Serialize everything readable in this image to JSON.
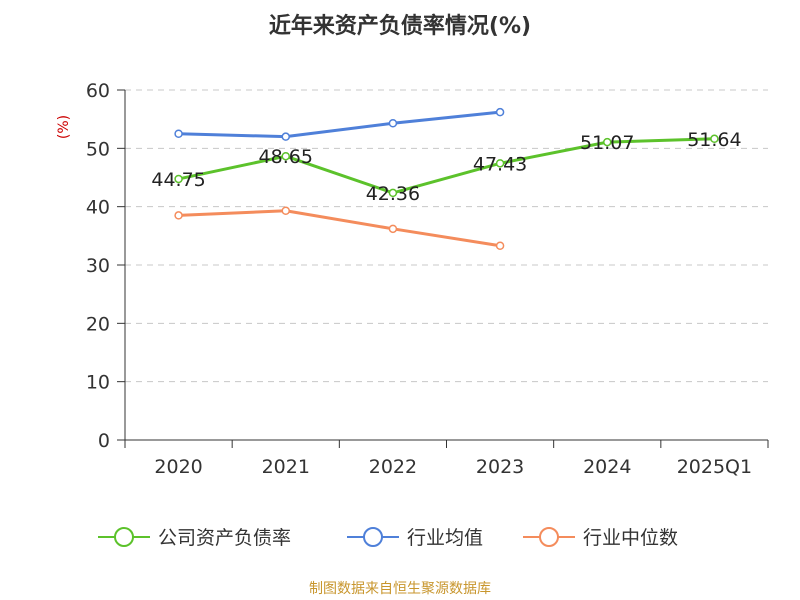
{
  "chart_data": {
    "type": "line",
    "title": "近年来资产负债率情况(%)",
    "ylabel": "(%)",
    "xlabel": "",
    "categories": [
      "2020",
      "2021",
      "2022",
      "2023",
      "2024",
      "2025Q1"
    ],
    "ylim": [
      0,
      60
    ],
    "yticks": [
      0,
      10,
      20,
      30,
      40,
      50,
      60
    ],
    "grid": "horizontal-dashed",
    "legend_position": "bottom",
    "series": [
      {
        "name": "公司资产负债率",
        "color": "#5cc22b",
        "labeled": true,
        "values": [
          44.75,
          48.65,
          42.36,
          47.43,
          51.07,
          51.64
        ]
      },
      {
        "name": "行业均值",
        "color": "#4f80d9",
        "labeled": false,
        "values": [
          52.5,
          52.0,
          54.3,
          56.2,
          null,
          null
        ]
      },
      {
        "name": "行业中位数",
        "color": "#f48c5c",
        "labeled": false,
        "values": [
          38.5,
          39.3,
          36.2,
          33.3,
          null,
          null
        ]
      }
    ]
  },
  "source_note": "制图数据来自恒生聚源数据库"
}
